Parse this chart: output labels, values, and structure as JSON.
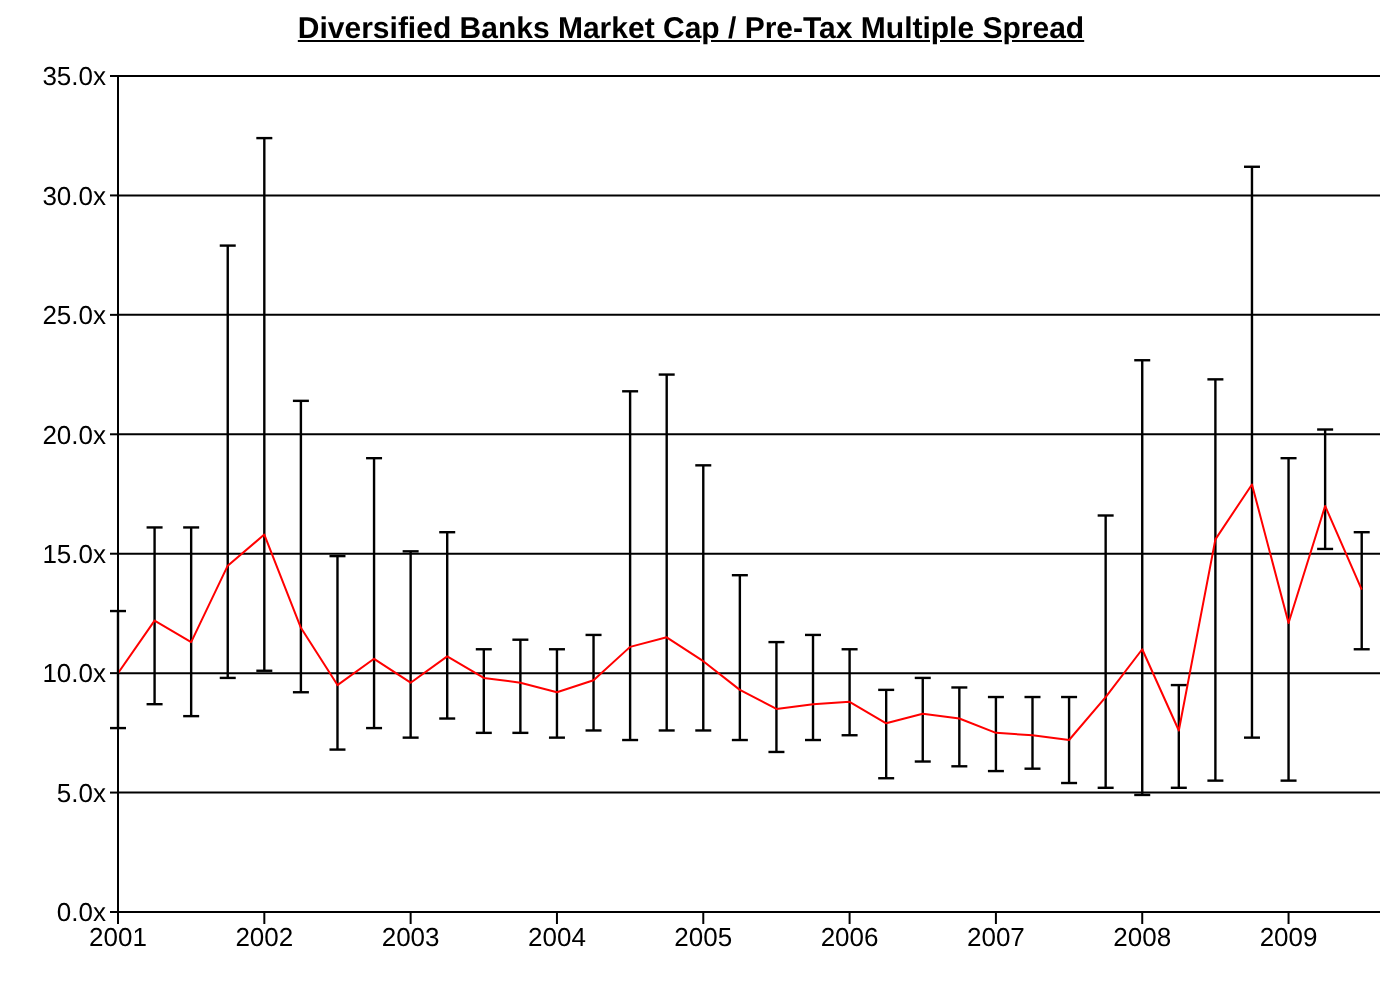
{
  "chart_data": {
    "type": "line",
    "title": "Diversified Banks Market Cap / Pre-Tax Multiple Spread",
    "x": [
      2001,
      2001.25,
      2001.5,
      2001.75,
      2002,
      2002.25,
      2002.5,
      2002.75,
      2003,
      2003.25,
      2003.5,
      2003.75,
      2004,
      2004.25,
      2004.5,
      2004.75,
      2005,
      2005.25,
      2005.5,
      2005.75,
      2006,
      2006.25,
      2006.5,
      2006.75,
      2007,
      2007.25,
      2007.5,
      2007.75,
      2008,
      2008.25,
      2008.5,
      2008.75,
      2009,
      2009.25,
      2009.5
    ],
    "series": [
      {
        "color": "#ff0000",
        "values": [
          10.0,
          12.2,
          11.3,
          14.5,
          15.8,
          11.9,
          9.5,
          10.6,
          9.6,
          10.7,
          9.8,
          9.6,
          9.2,
          9.7,
          11.1,
          11.5,
          10.5,
          9.3,
          8.5,
          8.7,
          8.8,
          7.9,
          8.3,
          8.1,
          7.5,
          7.4,
          7.2,
          9.0,
          11.0,
          7.6,
          15.6,
          17.9,
          12.1,
          17.0,
          13.5
        ],
        "errors": [
          [
            7.7,
            12.6
          ],
          [
            8.7,
            16.1
          ],
          [
            8.2,
            16.1
          ],
          [
            9.8,
            27.9
          ],
          [
            10.1,
            32.4
          ],
          [
            9.2,
            21.4
          ],
          [
            6.8,
            14.9
          ],
          [
            7.7,
            19.0
          ],
          [
            7.3,
            15.1
          ],
          [
            8.1,
            15.9
          ],
          [
            7.5,
            11.0
          ],
          [
            7.5,
            11.4
          ],
          [
            7.3,
            11.0
          ],
          [
            7.6,
            11.6
          ],
          [
            7.2,
            21.8
          ],
          [
            7.6,
            22.5
          ],
          [
            7.6,
            18.7
          ],
          [
            7.2,
            14.1
          ],
          [
            6.7,
            11.3
          ],
          [
            7.2,
            11.6
          ],
          [
            7.4,
            11.0
          ],
          [
            5.6,
            9.3
          ],
          [
            6.3,
            9.8
          ],
          [
            6.1,
            9.4
          ],
          [
            5.9,
            9.0
          ],
          [
            6.0,
            9.0
          ],
          [
            5.4,
            9.0
          ],
          [
            5.2,
            16.6
          ],
          [
            4.9,
            23.1
          ],
          [
            5.2,
            9.5
          ],
          [
            5.5,
            22.3
          ],
          [
            7.3,
            31.2
          ],
          [
            5.5,
            19.0
          ],
          [
            15.2,
            20.2
          ],
          [
            11.0,
            15.9
          ]
        ]
      }
    ],
    "xlim": [
      2001,
      2009.625
    ],
    "xticks": [
      2001,
      2002,
      2003,
      2004,
      2005,
      2006,
      2007,
      2008,
      2009
    ],
    "ylim": [
      0,
      35
    ],
    "yticks": [
      {
        "value": 0,
        "label": "0.0x"
      },
      {
        "value": 5,
        "label": "5.0x"
      },
      {
        "value": 10,
        "label": "10.0x"
      },
      {
        "value": 15,
        "label": "15.0x"
      },
      {
        "value": 20,
        "label": "20.0x"
      },
      {
        "value": 25,
        "label": "25.0x"
      },
      {
        "value": 30,
        "label": "30.0x"
      },
      {
        "value": 35,
        "label": "35.0x"
      }
    ],
    "grid": "y",
    "marker": "none",
    "line_style": "solid"
  }
}
